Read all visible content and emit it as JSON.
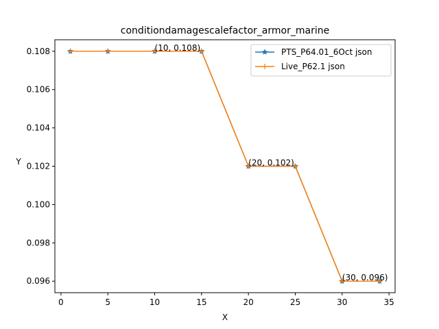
{
  "chart_data": {
    "type": "line",
    "title": "conditiondamagescalefactor_armor_marine",
    "xlabel": "X",
    "ylabel": "Y",
    "xlim": [
      -0.65,
      35.65
    ],
    "ylim": [
      0.0954,
      0.1086
    ],
    "xticks": [
      0,
      5,
      10,
      15,
      20,
      25,
      30,
      35
    ],
    "xtick_labels": [
      "0",
      "5",
      "10",
      "15",
      "20",
      "25",
      "30",
      "35"
    ],
    "yticks": [
      0.096,
      0.098,
      0.1,
      0.102,
      0.104,
      0.106,
      0.108
    ],
    "ytick_labels": [
      "0.096",
      "0.098",
      "0.100",
      "0.102",
      "0.104",
      "0.106",
      "0.108"
    ],
    "grid": false,
    "legend_position": "top-right",
    "series": [
      {
        "name": "PTS_P64.01_6Oct json",
        "color": "#1f77b4",
        "marker": "star",
        "x": [
          1,
          5,
          10,
          15,
          20,
          25,
          30,
          34
        ],
        "y": [
          0.108,
          0.108,
          0.108,
          0.108,
          0.102,
          0.102,
          0.096,
          0.096
        ]
      },
      {
        "name": "Live_P62.1 json",
        "color": "#ff7f0e",
        "marker": "plus",
        "x": [
          1,
          5,
          10,
          15,
          20,
          25,
          30,
          34
        ],
        "y": [
          0.108,
          0.108,
          0.108,
          0.108,
          0.102,
          0.102,
          0.096,
          0.096
        ]
      }
    ],
    "annotations": [
      {
        "x": 10,
        "y": 0.108,
        "text": "(10, 0.108)"
      },
      {
        "x": 20,
        "y": 0.102,
        "text": "(20, 0.102)"
      },
      {
        "x": 30,
        "y": 0.096,
        "text": "(30, 0.096)"
      }
    ]
  }
}
